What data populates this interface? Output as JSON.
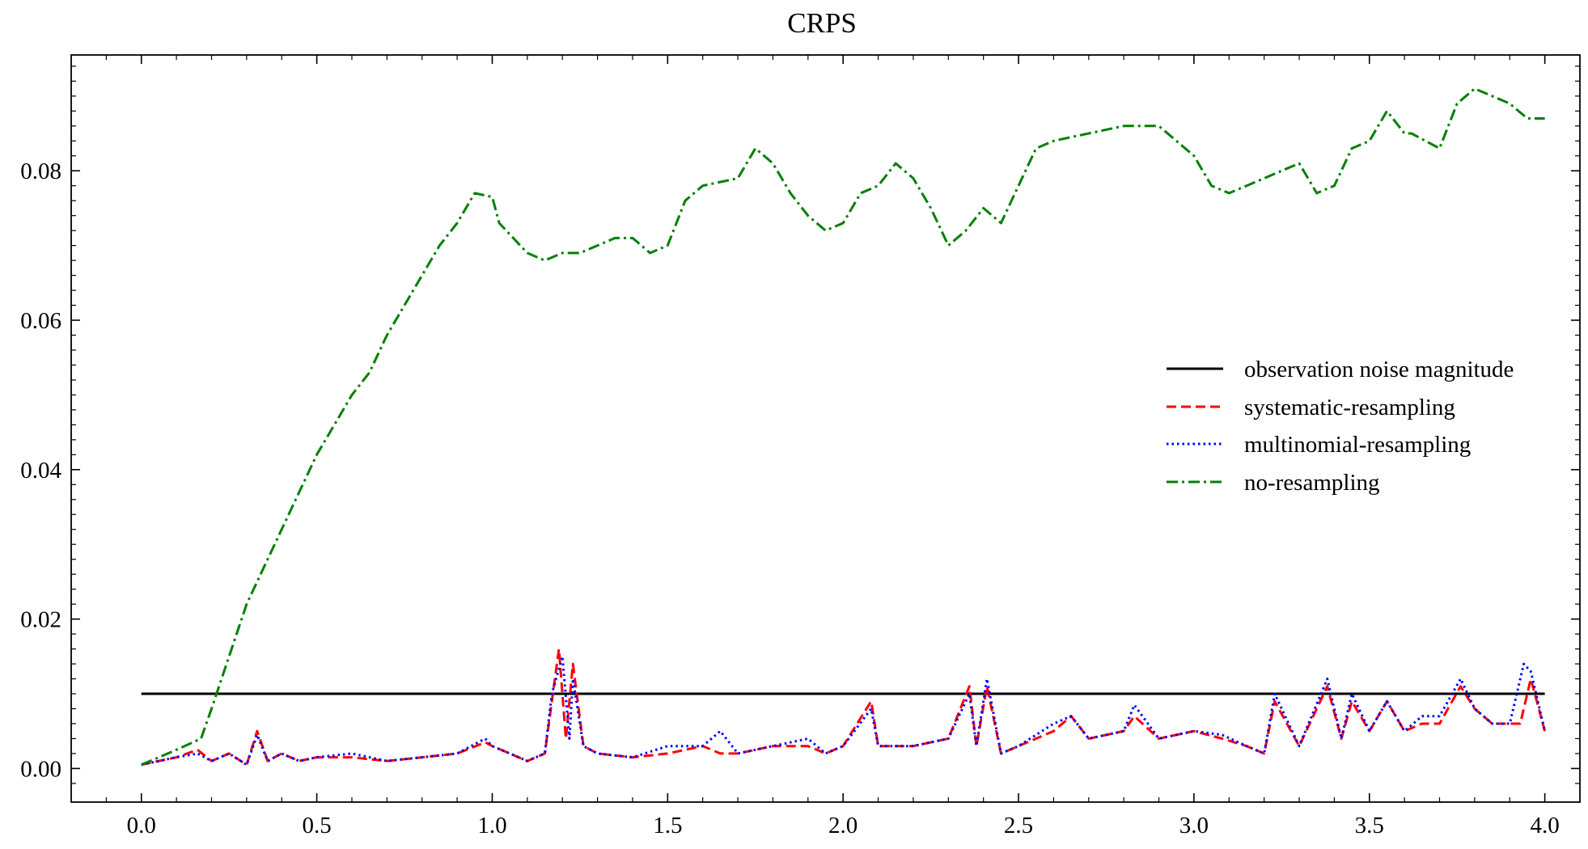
{
  "chart_data": {
    "type": "line",
    "title": "CRPS",
    "xlabel": "",
    "ylabel": "",
    "xlim": [
      -0.2,
      4.1
    ],
    "ylim": [
      -0.0045,
      0.0955
    ],
    "xticks": [
      "0.0",
      "0.5",
      "1.0",
      "1.5",
      "2.0",
      "2.5",
      "3.0",
      "3.5",
      "4.0"
    ],
    "yticks": [
      "0.00",
      "0.02",
      "0.04",
      "0.06",
      "0.08"
    ],
    "legend_position": "center-right",
    "grid": false,
    "series": [
      {
        "name": "observation noise magnitude",
        "color": "#000000",
        "style": "solid",
        "x": [
          0.0,
          4.0
        ],
        "y": [
          0.01,
          0.01
        ]
      },
      {
        "name": "systematic-resampling",
        "color": "#ff0000",
        "style": "dashed",
        "x": [
          0.0,
          0.05,
          0.1,
          0.16,
          0.2,
          0.25,
          0.3,
          0.33,
          0.36,
          0.4,
          0.45,
          0.5,
          0.6,
          0.7,
          0.8,
          0.9,
          0.98,
          1.0,
          1.05,
          1.1,
          1.15,
          1.17,
          1.19,
          1.21,
          1.23,
          1.26,
          1.3,
          1.4,
          1.5,
          1.6,
          1.65,
          1.7,
          1.8,
          1.9,
          1.95,
          2.0,
          2.08,
          2.1,
          2.2,
          2.3,
          2.36,
          2.38,
          2.41,
          2.45,
          2.5,
          2.6,
          2.65,
          2.7,
          2.8,
          2.83,
          2.9,
          3.0,
          3.08,
          3.15,
          3.2,
          3.23,
          3.3,
          3.38,
          3.42,
          3.45,
          3.5,
          3.55,
          3.6,
          3.65,
          3.7,
          3.76,
          3.8,
          3.85,
          3.9,
          3.93,
          3.96,
          4.0
        ],
        "y": [
          0.0005,
          0.001,
          0.0015,
          0.0025,
          0.001,
          0.002,
          0.0005,
          0.005,
          0.001,
          0.002,
          0.001,
          0.0015,
          0.0015,
          0.001,
          0.0015,
          0.002,
          0.0035,
          0.003,
          0.002,
          0.001,
          0.002,
          0.009,
          0.016,
          0.004,
          0.014,
          0.003,
          0.002,
          0.0015,
          0.002,
          0.003,
          0.002,
          0.002,
          0.003,
          0.003,
          0.002,
          0.003,
          0.009,
          0.003,
          0.003,
          0.004,
          0.011,
          0.003,
          0.011,
          0.002,
          0.003,
          0.005,
          0.007,
          0.004,
          0.005,
          0.007,
          0.004,
          0.005,
          0.004,
          0.003,
          0.002,
          0.009,
          0.003,
          0.011,
          0.004,
          0.009,
          0.005,
          0.009,
          0.005,
          0.006,
          0.006,
          0.011,
          0.008,
          0.006,
          0.006,
          0.006,
          0.012,
          0.005
        ]
      },
      {
        "name": "multinomial-resampling",
        "color": "#0000ff",
        "style": "dotted",
        "x": [
          0.0,
          0.05,
          0.1,
          0.16,
          0.2,
          0.25,
          0.3,
          0.33,
          0.36,
          0.4,
          0.45,
          0.5,
          0.6,
          0.7,
          0.8,
          0.9,
          0.98,
          1.0,
          1.05,
          1.1,
          1.15,
          1.17,
          1.2,
          1.22,
          1.23,
          1.26,
          1.3,
          1.4,
          1.5,
          1.6,
          1.65,
          1.7,
          1.8,
          1.9,
          1.95,
          2.0,
          2.08,
          2.1,
          2.2,
          2.3,
          2.36,
          2.38,
          2.41,
          2.45,
          2.5,
          2.6,
          2.65,
          2.7,
          2.8,
          2.83,
          2.9,
          3.0,
          3.08,
          3.15,
          3.2,
          3.23,
          3.3,
          3.38,
          3.42,
          3.45,
          3.5,
          3.55,
          3.6,
          3.65,
          3.7,
          3.76,
          3.8,
          3.85,
          3.9,
          3.94,
          3.96,
          4.0
        ],
        "y": [
          0.0005,
          0.001,
          0.0015,
          0.002,
          0.001,
          0.002,
          0.0005,
          0.0045,
          0.001,
          0.002,
          0.001,
          0.0015,
          0.002,
          0.001,
          0.0015,
          0.002,
          0.004,
          0.003,
          0.002,
          0.001,
          0.002,
          0.01,
          0.015,
          0.004,
          0.012,
          0.003,
          0.002,
          0.0015,
          0.003,
          0.003,
          0.005,
          0.002,
          0.003,
          0.004,
          0.002,
          0.003,
          0.008,
          0.003,
          0.003,
          0.004,
          0.01,
          0.003,
          0.012,
          0.002,
          0.003,
          0.006,
          0.007,
          0.004,
          0.005,
          0.0085,
          0.004,
          0.005,
          0.0045,
          0.003,
          0.002,
          0.01,
          0.003,
          0.012,
          0.004,
          0.01,
          0.005,
          0.009,
          0.005,
          0.007,
          0.007,
          0.012,
          0.008,
          0.006,
          0.006,
          0.014,
          0.013,
          0.005
        ]
      },
      {
        "name": "no-resampling",
        "color": "#008000",
        "style": "dashdot",
        "x": [
          0.0,
          0.05,
          0.1,
          0.17,
          0.2,
          0.25,
          0.3,
          0.35,
          0.4,
          0.45,
          0.5,
          0.55,
          0.6,
          0.65,
          0.7,
          0.75,
          0.8,
          0.85,
          0.9,
          0.95,
          1.0,
          1.02,
          1.06,
          1.1,
          1.15,
          1.2,
          1.25,
          1.3,
          1.35,
          1.4,
          1.45,
          1.5,
          1.55,
          1.6,
          1.7,
          1.75,
          1.8,
          1.85,
          1.9,
          1.95,
          2.0,
          2.05,
          2.1,
          2.15,
          2.2,
          2.25,
          2.3,
          2.35,
          2.4,
          2.45,
          2.5,
          2.55,
          2.6,
          2.65,
          2.7,
          2.8,
          2.9,
          3.0,
          3.05,
          3.1,
          3.15,
          3.2,
          3.25,
          3.3,
          3.35,
          3.4,
          3.45,
          3.5,
          3.55,
          3.6,
          3.62,
          3.66,
          3.7,
          3.75,
          3.8,
          3.85,
          3.9,
          3.95,
          4.0
        ],
        "y": [
          0.0005,
          0.0015,
          0.0025,
          0.004,
          0.008,
          0.015,
          0.022,
          0.027,
          0.032,
          0.037,
          0.042,
          0.046,
          0.05,
          0.053,
          0.058,
          0.062,
          0.066,
          0.07,
          0.073,
          0.077,
          0.0765,
          0.073,
          0.071,
          0.069,
          0.068,
          0.069,
          0.069,
          0.07,
          0.071,
          0.071,
          0.069,
          0.07,
          0.076,
          0.078,
          0.079,
          0.083,
          0.081,
          0.077,
          0.074,
          0.072,
          0.073,
          0.077,
          0.078,
          0.081,
          0.079,
          0.075,
          0.07,
          0.072,
          0.075,
          0.073,
          0.078,
          0.083,
          0.084,
          0.0845,
          0.085,
          0.086,
          0.086,
          0.082,
          0.078,
          0.077,
          0.078,
          0.079,
          0.08,
          0.081,
          0.077,
          0.078,
          0.083,
          0.084,
          0.088,
          0.085,
          0.085,
          0.084,
          0.083,
          0.089,
          0.091,
          0.09,
          0.089,
          0.087,
          0.087
        ]
      }
    ]
  }
}
